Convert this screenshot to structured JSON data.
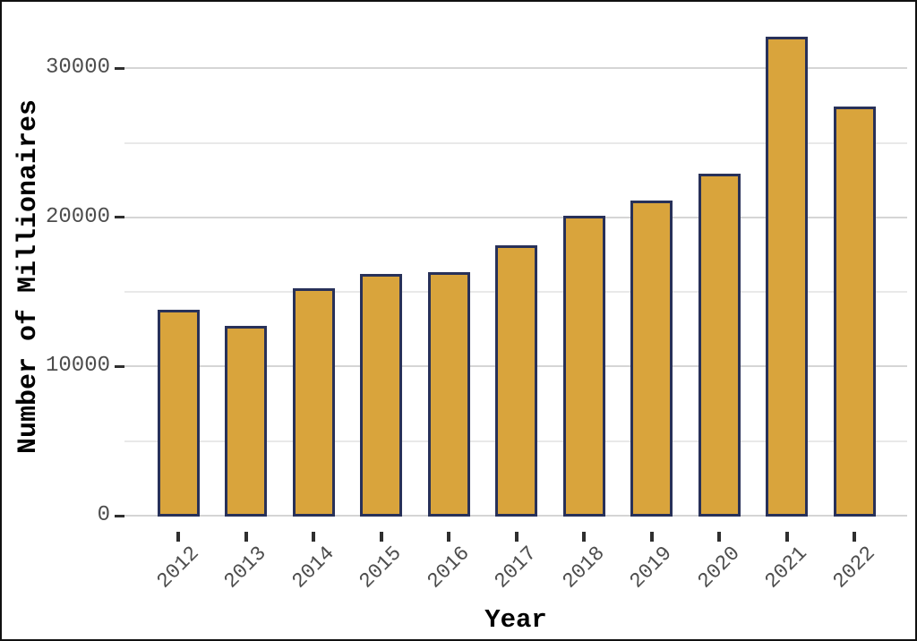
{
  "chart_data": {
    "type": "bar",
    "title": "",
    "xlabel": "Year",
    "ylabel": "Number of Millionaires",
    "categories": [
      "2012",
      "2013",
      "2014",
      "2015",
      "2016",
      "2017",
      "2018",
      "2019",
      "2020",
      "2021",
      "2022"
    ],
    "values": [
      13700,
      12600,
      15100,
      16100,
      16200,
      18000,
      20000,
      21000,
      22800,
      32000,
      27300
    ],
    "ylim": [
      0,
      33500
    ],
    "yticks": [
      {
        "value": 0,
        "label": "0"
      },
      {
        "value": 10000,
        "label": "10000"
      },
      {
        "value": 20000,
        "label": "20000"
      },
      {
        "value": 30000,
        "label": "30000"
      }
    ],
    "yticks_minor": [
      5000,
      15000,
      25000
    ],
    "grid": "horizontal",
    "legend": "none",
    "x_tick_rotation_deg": 45,
    "colors": {
      "bar_fill": "#D9A43C",
      "bar_border": "#283159",
      "grid_major": "#d5d5d5",
      "grid_minor": "#e9e9e9",
      "tick_mark": "#2f2f2f",
      "tick_label": "#4d4d4d",
      "axis_title": "#000000",
      "background": "#ffffff",
      "frame": "#111111"
    }
  }
}
